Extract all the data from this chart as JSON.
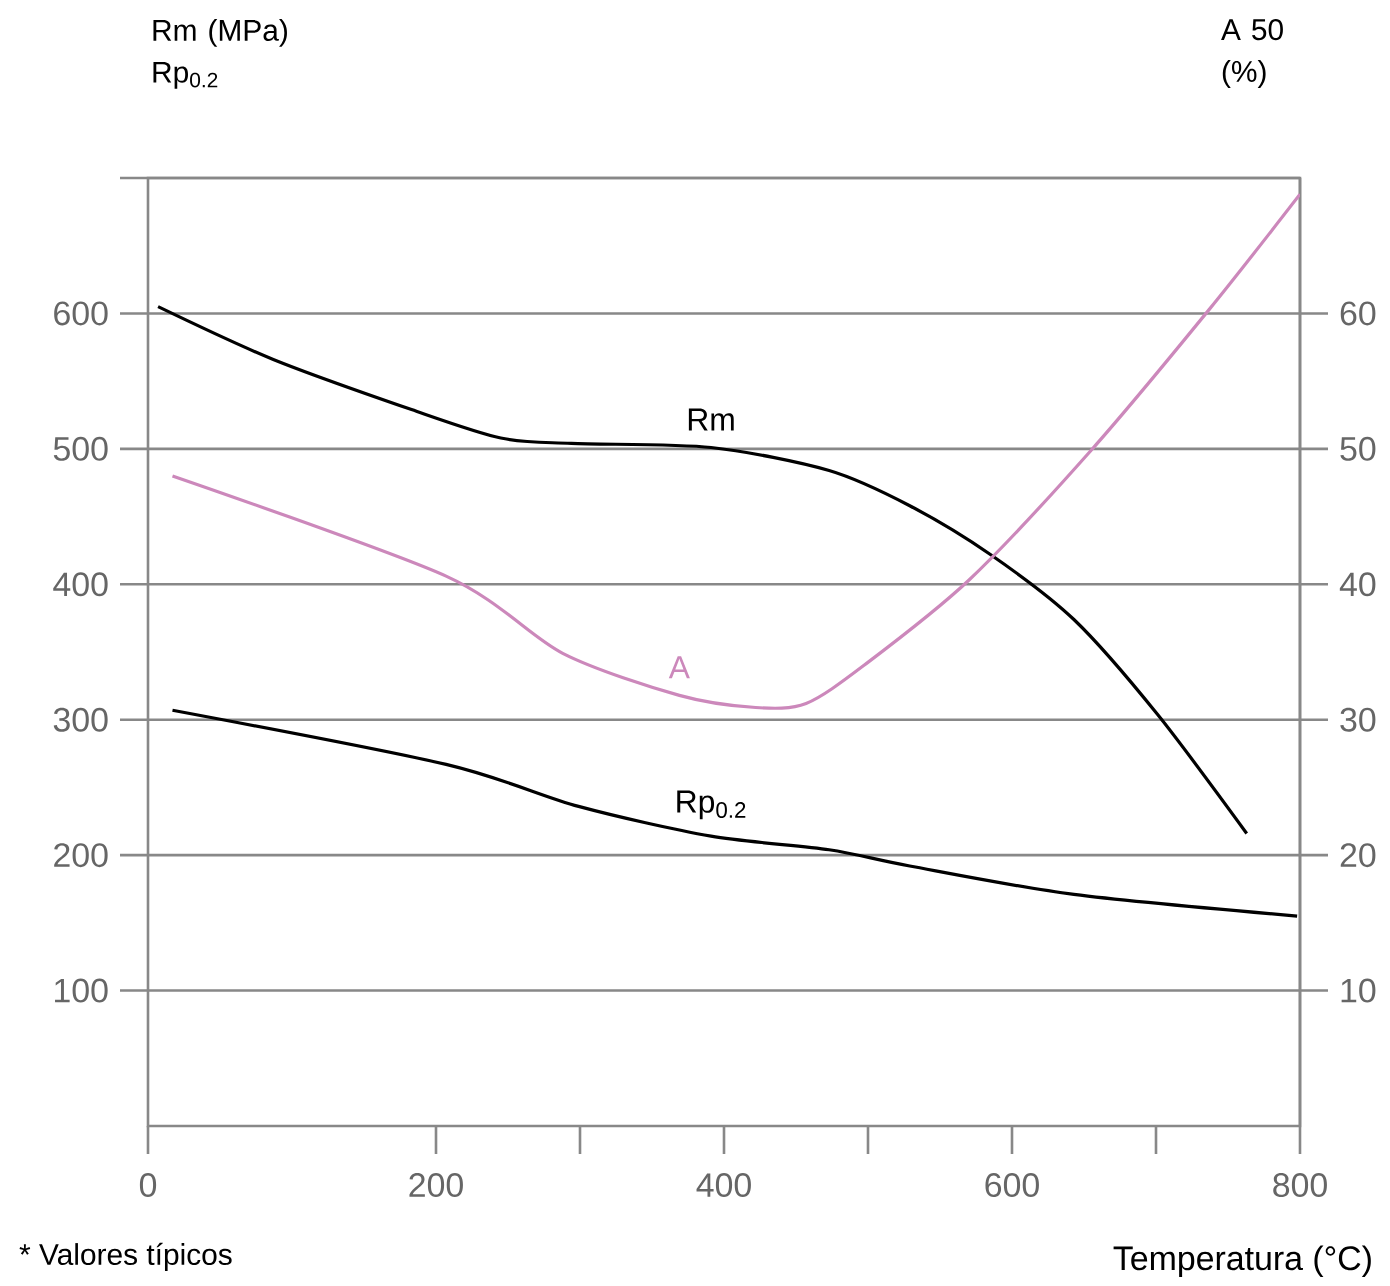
{
  "chart_data": {
    "type": "line",
    "ylabel": "Rm (MPa) Rp$_{0.2}$",
    "y2label": "A 50 (%)",
    "xlabel": "Temperatura (°C)",
    "annotations": [
      "* Valores típicos"
    ],
    "xlim": [
      0,
      800
    ],
    "xticks": [
      0,
      200,
      {
        "value": 300,
        "label": null
      },
      400,
      {
        "value": 500,
        "label": null
      },
      600,
      {
        "value": 700,
        "label": null
      },
      800
    ],
    "ylim": [
      0,
      700
    ],
    "yticks": [
      100,
      200,
      300,
      400,
      500,
      600,
      {
        "value": 700,
        "label": null
      }
    ],
    "y2lim": [
      0,
      70
    ],
    "y2ticks": [
      10,
      20,
      30,
      40,
      50,
      60
    ],
    "grid": "y",
    "series": [
      {
        "name": "Rm",
        "color": "#000000",
        "x": [
          7,
          87,
          183,
          245,
          294,
          391,
          473,
          529,
          585,
          643,
          701,
          763
        ],
        "values": [
          605,
          566,
          529,
          508,
          504,
          501,
          484,
          458,
          422,
          374,
          304,
          216
        ]
      },
      {
        "name": "A",
        "color": "#cc88bb",
        "axis": "y2",
        "x": [
          17,
          207,
          288,
          369,
          422,
          457,
          497,
          570,
          655,
          737,
          800
        ],
        "values": [
          48.0,
          40.6,
          34.9,
          31.8,
          30.9,
          31.2,
          34.0,
          40.3,
          49.9,
          60.3,
          68.8
        ]
      },
      {
        "name": "Rp$_{0.2}$",
        "color": "#000000",
        "x": [
          17,
          207,
          299,
          391,
          473,
          529,
          643,
          798
        ],
        "values": [
          307,
          267,
          236,
          214,
          204,
          192,
          171,
          155
        ]
      }
    ]
  }
}
